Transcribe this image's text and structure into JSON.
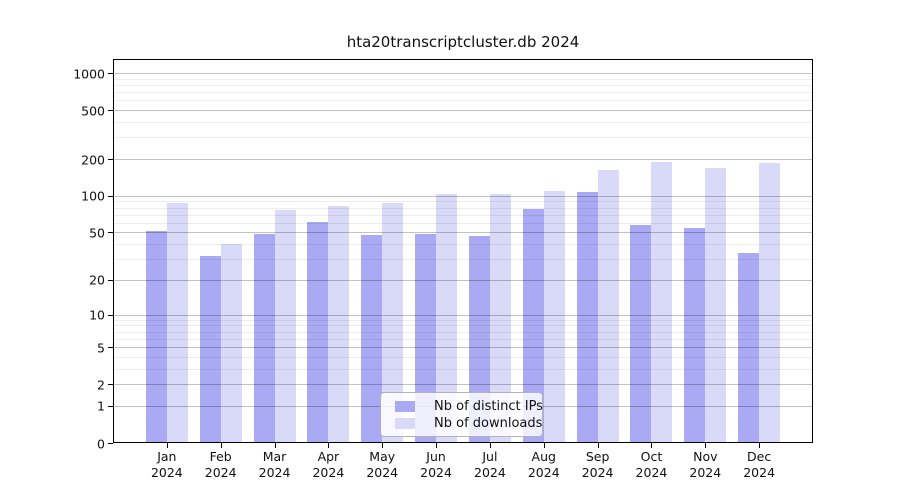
{
  "title": "hta20transcriptcluster.db 2024",
  "chart_data": {
    "type": "bar",
    "title": "hta20transcriptcluster.db 2024",
    "categories": [
      "Jan 2024",
      "Feb 2024",
      "Mar 2024",
      "Apr 2024",
      "May 2024",
      "Jun 2024",
      "Jul 2024",
      "Aug 2024",
      "Sep 2024",
      "Oct 2024",
      "Nov 2024",
      "Dec 2024"
    ],
    "series": [
      {
        "name": "Nb of distinct IPs",
        "color": "#a9a9f4",
        "values": [
          51,
          32,
          49,
          61,
          48,
          49,
          47,
          78,
          108,
          58,
          54,
          34
        ]
      },
      {
        "name": "Nb of downloads",
        "color": "#d9d9f8",
        "values": [
          87,
          40,
          76,
          82,
          88,
          104,
          104,
          110,
          163,
          188,
          168,
          186
        ]
      }
    ],
    "xlabel": "",
    "ylabel": "",
    "y_scale": "log10(value+1)",
    "y_ticks": [
      0,
      1,
      2,
      5,
      10,
      20,
      50,
      100,
      200,
      500,
      1000
    ],
    "y_minor_ticks": [
      3,
      4,
      6,
      7,
      8,
      9,
      30,
      40,
      60,
      70,
      80,
      90,
      300,
      400,
      600,
      700,
      800,
      900
    ],
    "ylim": [
      0,
      1300
    ],
    "grid": true,
    "legend_position": "bottom-center"
  },
  "legend": {
    "items": [
      {
        "label": "Nb of distinct IPs",
        "color": "#a9a9f4"
      },
      {
        "label": "Nb of downloads",
        "color": "#d9d9f8"
      }
    ]
  }
}
